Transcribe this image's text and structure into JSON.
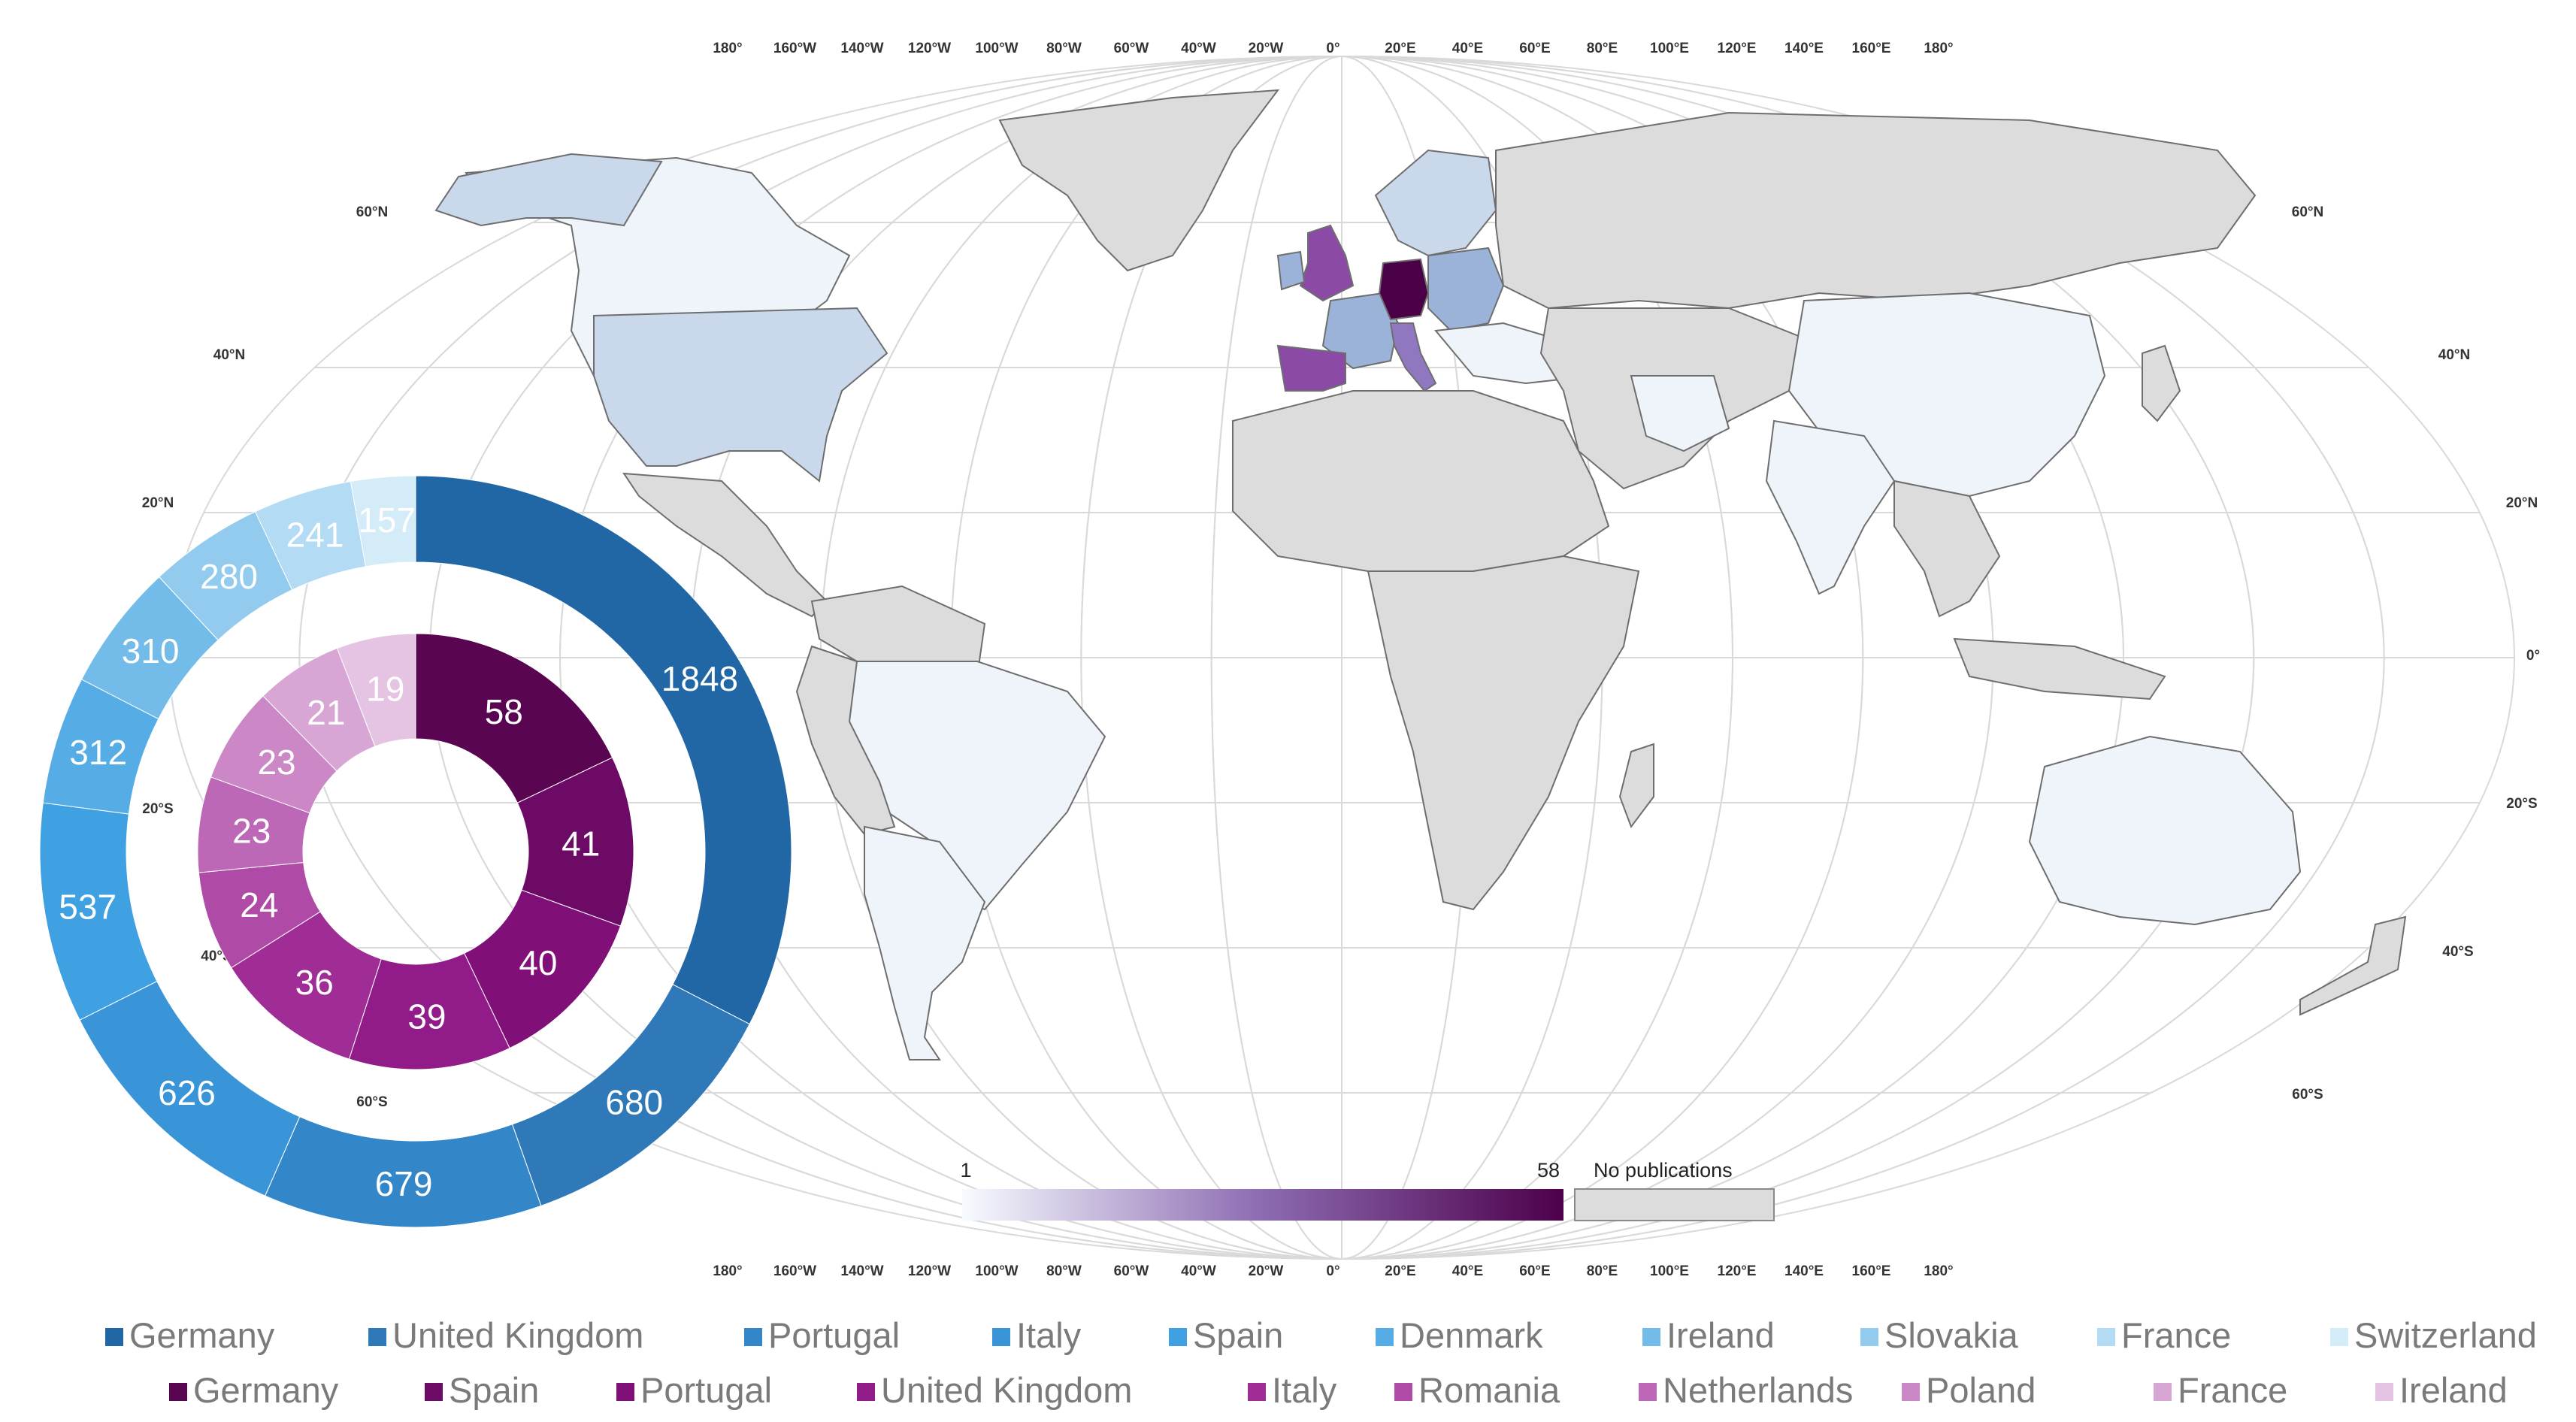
{
  "map": {
    "top_lon_labels": [
      "180°",
      "160°W",
      "140°W",
      "120°W",
      "100°W",
      "80°W",
      "60°W",
      "40°W",
      "20°W",
      "0°",
      "20°E",
      "40°E",
      "60°E",
      "80°E",
      "100°E",
      "120°E",
      "140°E",
      "160°E",
      "180°"
    ],
    "bottom_lon_labels": [
      "180°",
      "160°W",
      "140°W",
      "120°W",
      "100°W",
      "80°W",
      "60°W",
      "40°W",
      "20°W",
      "0°",
      "20°E",
      "40°E",
      "60°E",
      "80°E",
      "100°E",
      "120°E",
      "140°E",
      "160°E",
      "180°"
    ],
    "lat_labels_left": [
      "60°N",
      "40°N",
      "20°N",
      "20°S",
      "40°S",
      "60°S"
    ],
    "lat_labels_right": [
      "60°N",
      "40°N",
      "20°N",
      "0°",
      "20°S",
      "40°S",
      "60°S"
    ],
    "colors": {
      "no_data": "#dcdcdc",
      "land_stroke": "#6e6e6e",
      "graticule": "#d9d9d9",
      "light": "#eef4fa",
      "pale_blue": "#c9d8ea",
      "mid_blue": "#9cb3d9",
      "lavender": "#8f78c0",
      "purple": "#8b4aa5",
      "dark_purple": "#4a0046"
    }
  },
  "scale": {
    "min_label": "1",
    "max_label": "58",
    "no_data_label": "No publications",
    "color_start": "#f7fbff",
    "color_mid": "#8c6bb1",
    "color_end": "#4d004b"
  },
  "chart_data": [
    {
      "type": "pie",
      "ring": "outer",
      "categories": [
        "Germany",
        "United Kingdom",
        "Portugal",
        "Italy",
        "Spain",
        "Denmark",
        "Ireland",
        "Slovakia",
        "France",
        "Switzerland"
      ],
      "values": [
        1848,
        680,
        679,
        626,
        537,
        312,
        310,
        280,
        241,
        157
      ],
      "colors": [
        "#2166a5",
        "#2f79b9",
        "#3387c9",
        "#3a95d8",
        "#3fa1e2",
        "#56ade5",
        "#73bbe9",
        "#92cbee",
        "#b3dbf3",
        "#d4ebf8"
      ]
    },
    {
      "type": "pie",
      "ring": "inner",
      "categories": [
        "Germany",
        "Spain",
        "Portugal",
        "United Kingdom",
        "Italy",
        "Romania",
        "Netherlands",
        "Poland",
        "France",
        "Ireland"
      ],
      "values": [
        58,
        41,
        40,
        39,
        36,
        24,
        23,
        23,
        21,
        19
      ],
      "colors": [
        "#5a0552",
        "#6d0a66",
        "#800f78",
        "#911b88",
        "#a02c95",
        "#af4aa6",
        "#bd68b6",
        "#cb87c6",
        "#d8a6d5",
        "#e4c4e2"
      ]
    }
  ]
}
